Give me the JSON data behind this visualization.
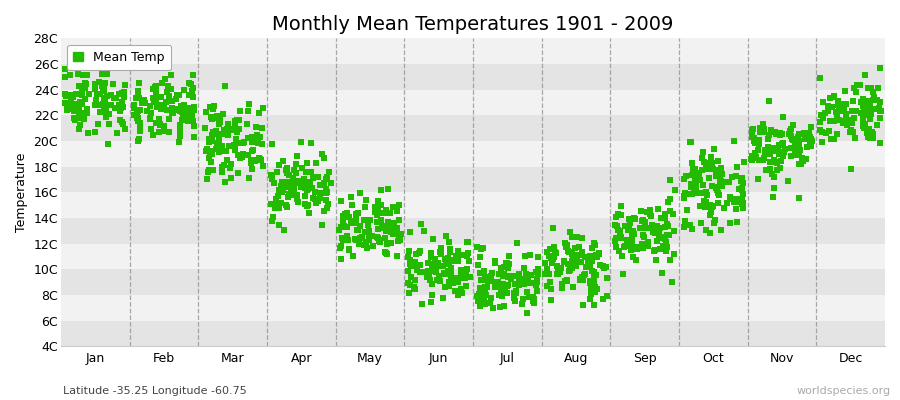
{
  "title": "Monthly Mean Temperatures 1901 - 2009",
  "ylabel": "Temperature",
  "months": [
    "Jan",
    "Feb",
    "Mar",
    "Apr",
    "May",
    "Jun",
    "Jul",
    "Aug",
    "Sep",
    "Oct",
    "Nov",
    "Dec"
  ],
  "monthly_means": [
    23.2,
    22.3,
    20.0,
    16.5,
    13.0,
    10.0,
    9.0,
    10.2,
    12.8,
    16.2,
    19.5,
    22.3
  ],
  "monthly_stds": [
    1.3,
    1.2,
    1.4,
    1.3,
    1.3,
    1.2,
    1.2,
    1.3,
    1.3,
    1.4,
    1.3,
    1.3
  ],
  "n_years": 109,
  "ylim": [
    4,
    28
  ],
  "yticks": [
    4,
    6,
    8,
    10,
    12,
    14,
    16,
    18,
    20,
    22,
    24,
    26,
    28
  ],
  "dot_color": "#22BB00",
  "dot_size": 15,
  "bg_color": "#ebebeb",
  "band_light": "#f2f2f2",
  "band_dark": "#e4e4e4",
  "legend_label": "Mean Temp",
  "watermark": "worldspecies.org",
  "footer": "Latitude -35.25 Longitude -60.75",
  "title_fontsize": 14,
  "axis_label_fontsize": 9,
  "tick_fontsize": 9,
  "seed": 42,
  "vline_color": "#888888",
  "spine_color": "#cccccc"
}
